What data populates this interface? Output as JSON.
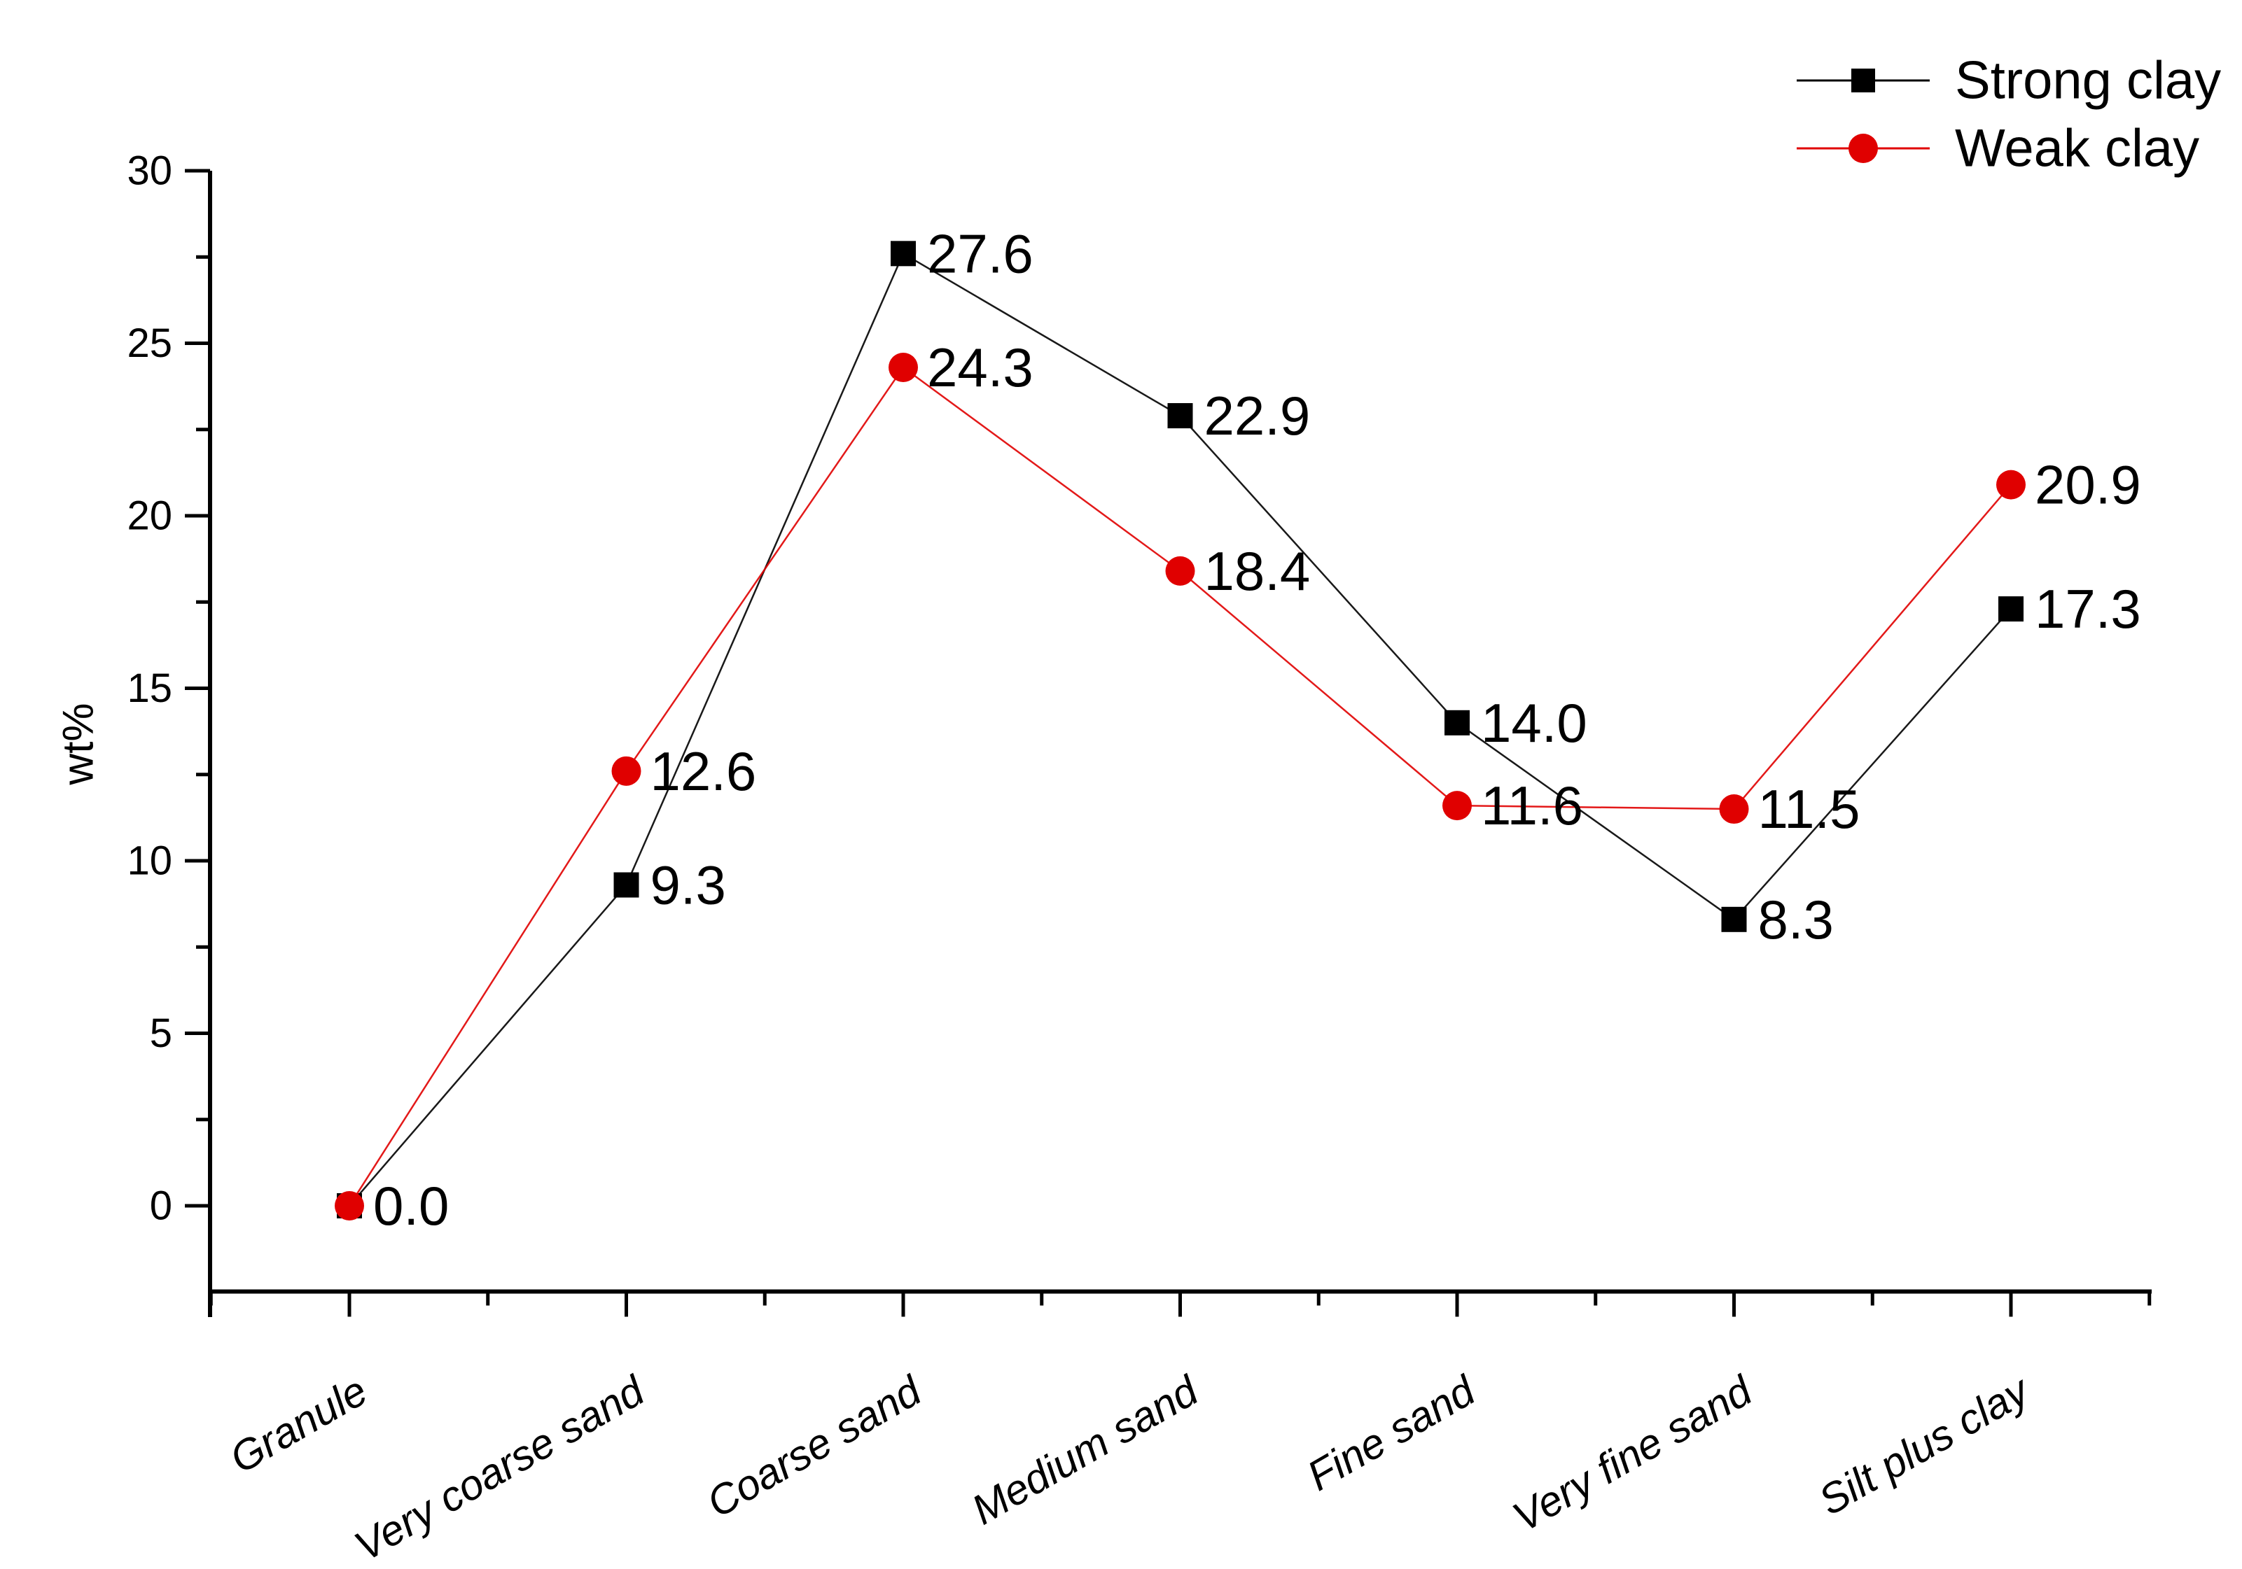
{
  "chart_data": {
    "type": "line",
    "title": "",
    "xlabel": "",
    "ylabel": "wt%",
    "ylim": [
      -2.5,
      30
    ],
    "yticks_major": [
      0,
      5,
      10,
      15,
      20,
      25,
      30
    ],
    "yticks_minor": [
      2.5,
      7.5,
      12.5,
      17.5,
      22.5,
      27.5
    ],
    "grid": false,
    "legend_position": "top-right",
    "categories": [
      "Granule",
      "Very coarse sand",
      "Coarse sand",
      "Medium sand",
      "Fine sand",
      "Very fine sand",
      "Silt plus clay"
    ],
    "series": [
      {
        "name": "Strong clay",
        "color": "#000000",
        "marker": "square",
        "values": [
          0.0,
          9.3,
          27.6,
          22.9,
          14.0,
          8.3,
          17.3
        ],
        "labels": [
          "0.0",
          "9.3",
          "27.6",
          "22.9",
          "14.0",
          "8.3",
          "17.3"
        ]
      },
      {
        "name": "Weak clay",
        "color": "#e00000",
        "marker": "circle",
        "values": [
          0.0,
          12.6,
          24.3,
          18.4,
          11.6,
          11.5,
          20.9
        ],
        "labels": [
          null,
          "12.6",
          "24.3",
          "18.4",
          "11.6",
          "11.5",
          "20.9"
        ]
      }
    ]
  },
  "colors": {
    "axis": "#000000",
    "strong_clay": "#000000",
    "weak_clay": "#e00000",
    "background": "#ffffff"
  }
}
